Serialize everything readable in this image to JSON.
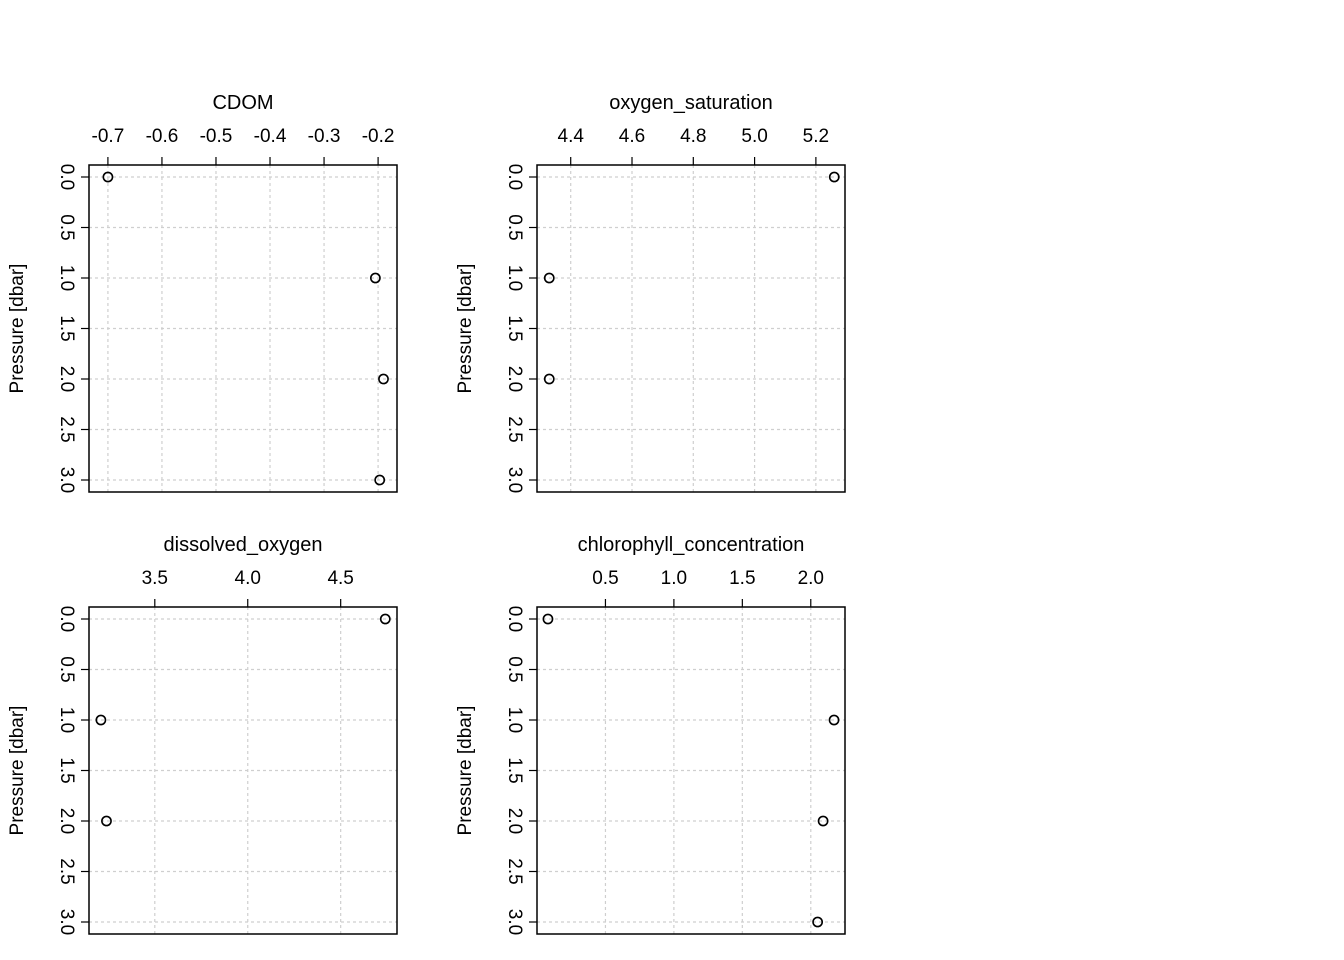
{
  "chart_data": [
    {
      "type": "scatter",
      "title": "CDOM",
      "ylabel": "Pressure [dbar]",
      "x_ticks": [
        "-0.7",
        "-0.6",
        "-0.5",
        "-0.4",
        "-0.3",
        "-0.2"
      ],
      "y_ticks": [
        "0.0",
        "0.5",
        "1.0",
        "1.5",
        "2.0",
        "2.5",
        "3.0"
      ],
      "xlim": [
        -0.735,
        -0.165
      ],
      "ylim": [
        0,
        3
      ],
      "y_inverted": true,
      "x_axis_position": "top",
      "grid": true,
      "points": [
        {
          "x": -0.7,
          "y": 0.0
        },
        {
          "x": -0.205,
          "y": 1.0
        },
        {
          "x": -0.19,
          "y": 2.0
        },
        {
          "x": -0.197,
          "y": 3.0
        }
      ]
    },
    {
      "type": "scatter",
      "title": "oxygen_saturation",
      "ylabel": "Pressure [dbar]",
      "x_ticks": [
        "4.4",
        "4.6",
        "4.8",
        "5.0",
        "5.2"
      ],
      "y_ticks": [
        "0.0",
        "0.5",
        "1.0",
        "1.5",
        "2.0",
        "2.5",
        "3.0"
      ],
      "xlim": [
        4.29,
        5.295
      ],
      "ylim": [
        0,
        3
      ],
      "y_inverted": true,
      "x_axis_position": "top",
      "grid": true,
      "points": [
        {
          "x": 5.26,
          "y": 0.0
        },
        {
          "x": 4.33,
          "y": 1.0
        },
        {
          "x": 4.33,
          "y": 2.0
        }
      ]
    },
    {
      "type": "scatter",
      "title": "dissolved_oxygen",
      "ylabel": "Pressure [dbar]",
      "x_ticks": [
        "3.5",
        "4.0",
        "4.5"
      ],
      "y_ticks": [
        "0.0",
        "0.5",
        "1.0",
        "1.5",
        "2.0",
        "2.5",
        "3.0"
      ],
      "xlim": [
        3.146,
        4.803
      ],
      "ylim": [
        0,
        3
      ],
      "y_inverted": true,
      "x_axis_position": "top",
      "grid": true,
      "points": [
        {
          "x": 4.74,
          "y": 0.0
        },
        {
          "x": 3.21,
          "y": 1.0
        },
        {
          "x": 3.24,
          "y": 2.0
        }
      ]
    },
    {
      "type": "scatter",
      "title": "chlorophyll_concentration",
      "ylabel": "Pressure [dbar]",
      "x_ticks": [
        "0.5",
        "1.0",
        "1.5",
        "2.0"
      ],
      "y_ticks": [
        "0.0",
        "0.5",
        "1.0",
        "1.5",
        "2.0",
        "2.5",
        "3.0"
      ],
      "xlim": [
        0.0,
        2.25
      ],
      "ylim": [
        0,
        3
      ],
      "y_inverted": true,
      "x_axis_position": "top",
      "grid": true,
      "points": [
        {
          "x": 0.08,
          "y": 0.0
        },
        {
          "x": 2.17,
          "y": 1.0
        },
        {
          "x": 2.09,
          "y": 2.0
        },
        {
          "x": 2.05,
          "y": 3.0
        }
      ]
    }
  ]
}
